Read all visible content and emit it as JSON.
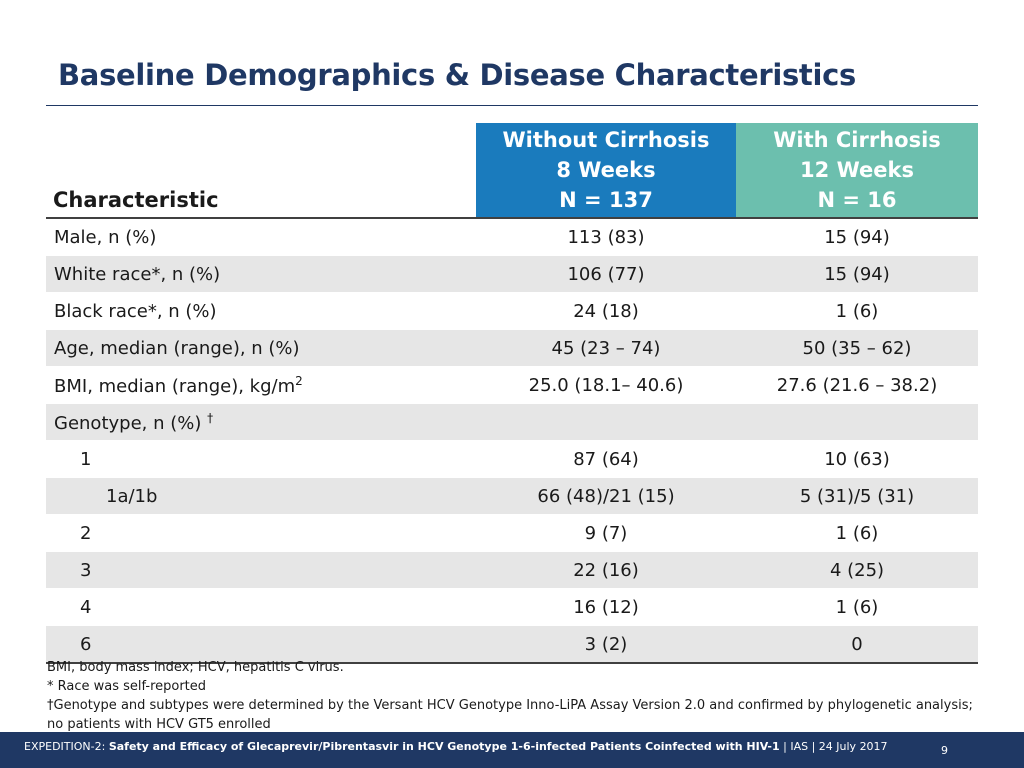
{
  "title": "Baseline Demographics & Disease Characteristics",
  "table": {
    "char_header": "Characteristic",
    "group1": {
      "line1": "Without Cirrhosis",
      "line2": "8 Weeks",
      "line3": "N = 137"
    },
    "group2": {
      "line1": "With Cirrhosis",
      "line2": "12 Weeks",
      "line3": "N = 16"
    },
    "rows": [
      {
        "label": "Male, n (%)",
        "g1": "113 (83)",
        "g2": "15 (94)"
      },
      {
        "label": "White race*, n (%)",
        "g1": "106 (77)",
        "g2": "15 (94)"
      },
      {
        "label": "Black race*, n (%)",
        "g1": "24 (18)",
        "g2": "1 (6)"
      },
      {
        "label": "Age, median (range), n (%)",
        "g1": "45 (23 – 74)",
        "g2": "50 (35 – 62)"
      },
      {
        "label": "BMI, median (range), kg/m",
        "sup": "2",
        "g1": "25.0 (18.1– 40.6)",
        "g2": "27.6 (21.6 – 38.2)"
      },
      {
        "label": "Genotype, n (%)",
        "sup": "†",
        "g1": "",
        "g2": ""
      },
      {
        "label": "1",
        "g1": "87 (64)",
        "g2": "10 (63)"
      },
      {
        "label": "1a/1b",
        "g1": "66 (48)/21 (15)",
        "g2": "5 (31)/5 (31)"
      },
      {
        "label": "2",
        "g1": "9 (7)",
        "g2": "1 (6)"
      },
      {
        "label": "3",
        "g1": "22 (16)",
        "g2": "4 (25)"
      },
      {
        "label": "4",
        "g1": "16 (12)",
        "g2": "1 (6)"
      },
      {
        "label": "6",
        "g1": "3 (2)",
        "g2": "0"
      }
    ]
  },
  "footnotes": {
    "abbrev": "BMI, body mass index; HCV, hepatitis C virus.",
    "race": "* Race was self-reported",
    "genotype_line1": "†Genotype and subtypes were determined by the Versant HCV Genotype Inno-LiPA Assay Version 2.0 and confirmed by phylogenetic analysis;",
    "genotype_line2": "no patients with HCV GT5 enrolled"
  },
  "footer": {
    "study": "EXPEDITION-2: ",
    "subtitle": "Safety and Efficacy of Glecaprevir/Pibrentasvir in HCV Genotype 1-6-infected Patients Coinfected with HIV-1",
    "meeting": " | IAS | 24 July 2017",
    "page": "9"
  },
  "colors": {
    "title": "#1f3864",
    "group1_header": "#1a7bbd",
    "group2_header": "#6cbfae",
    "stripe": "#e6e6e6",
    "footer_bar": "#1f3864"
  }
}
